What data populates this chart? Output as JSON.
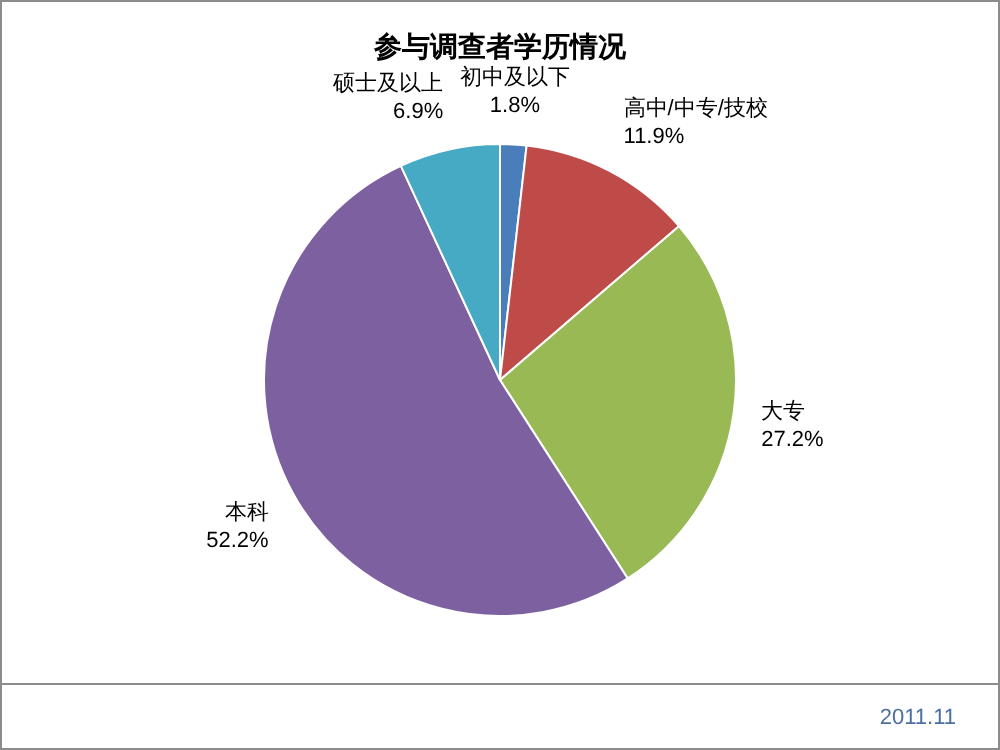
{
  "chart_data": {
    "type": "pie",
    "title": "参与调查者学历情况",
    "categories": [
      "初中及以下",
      "高中/中专/技校",
      "大专",
      "本科",
      "硕士及以上"
    ],
    "values": [
      1.8,
      11.9,
      27.2,
      52.2,
      6.9
    ],
    "colors": [
      "#4a7ebb",
      "#be4b48",
      "#98b954",
      "#7d60a0",
      "#46aac5"
    ],
    "value_labels": [
      "1.8%",
      "11.9%",
      "27.2%",
      "52.2%",
      "6.9%"
    ],
    "annotations": [
      "2011.11"
    ]
  }
}
